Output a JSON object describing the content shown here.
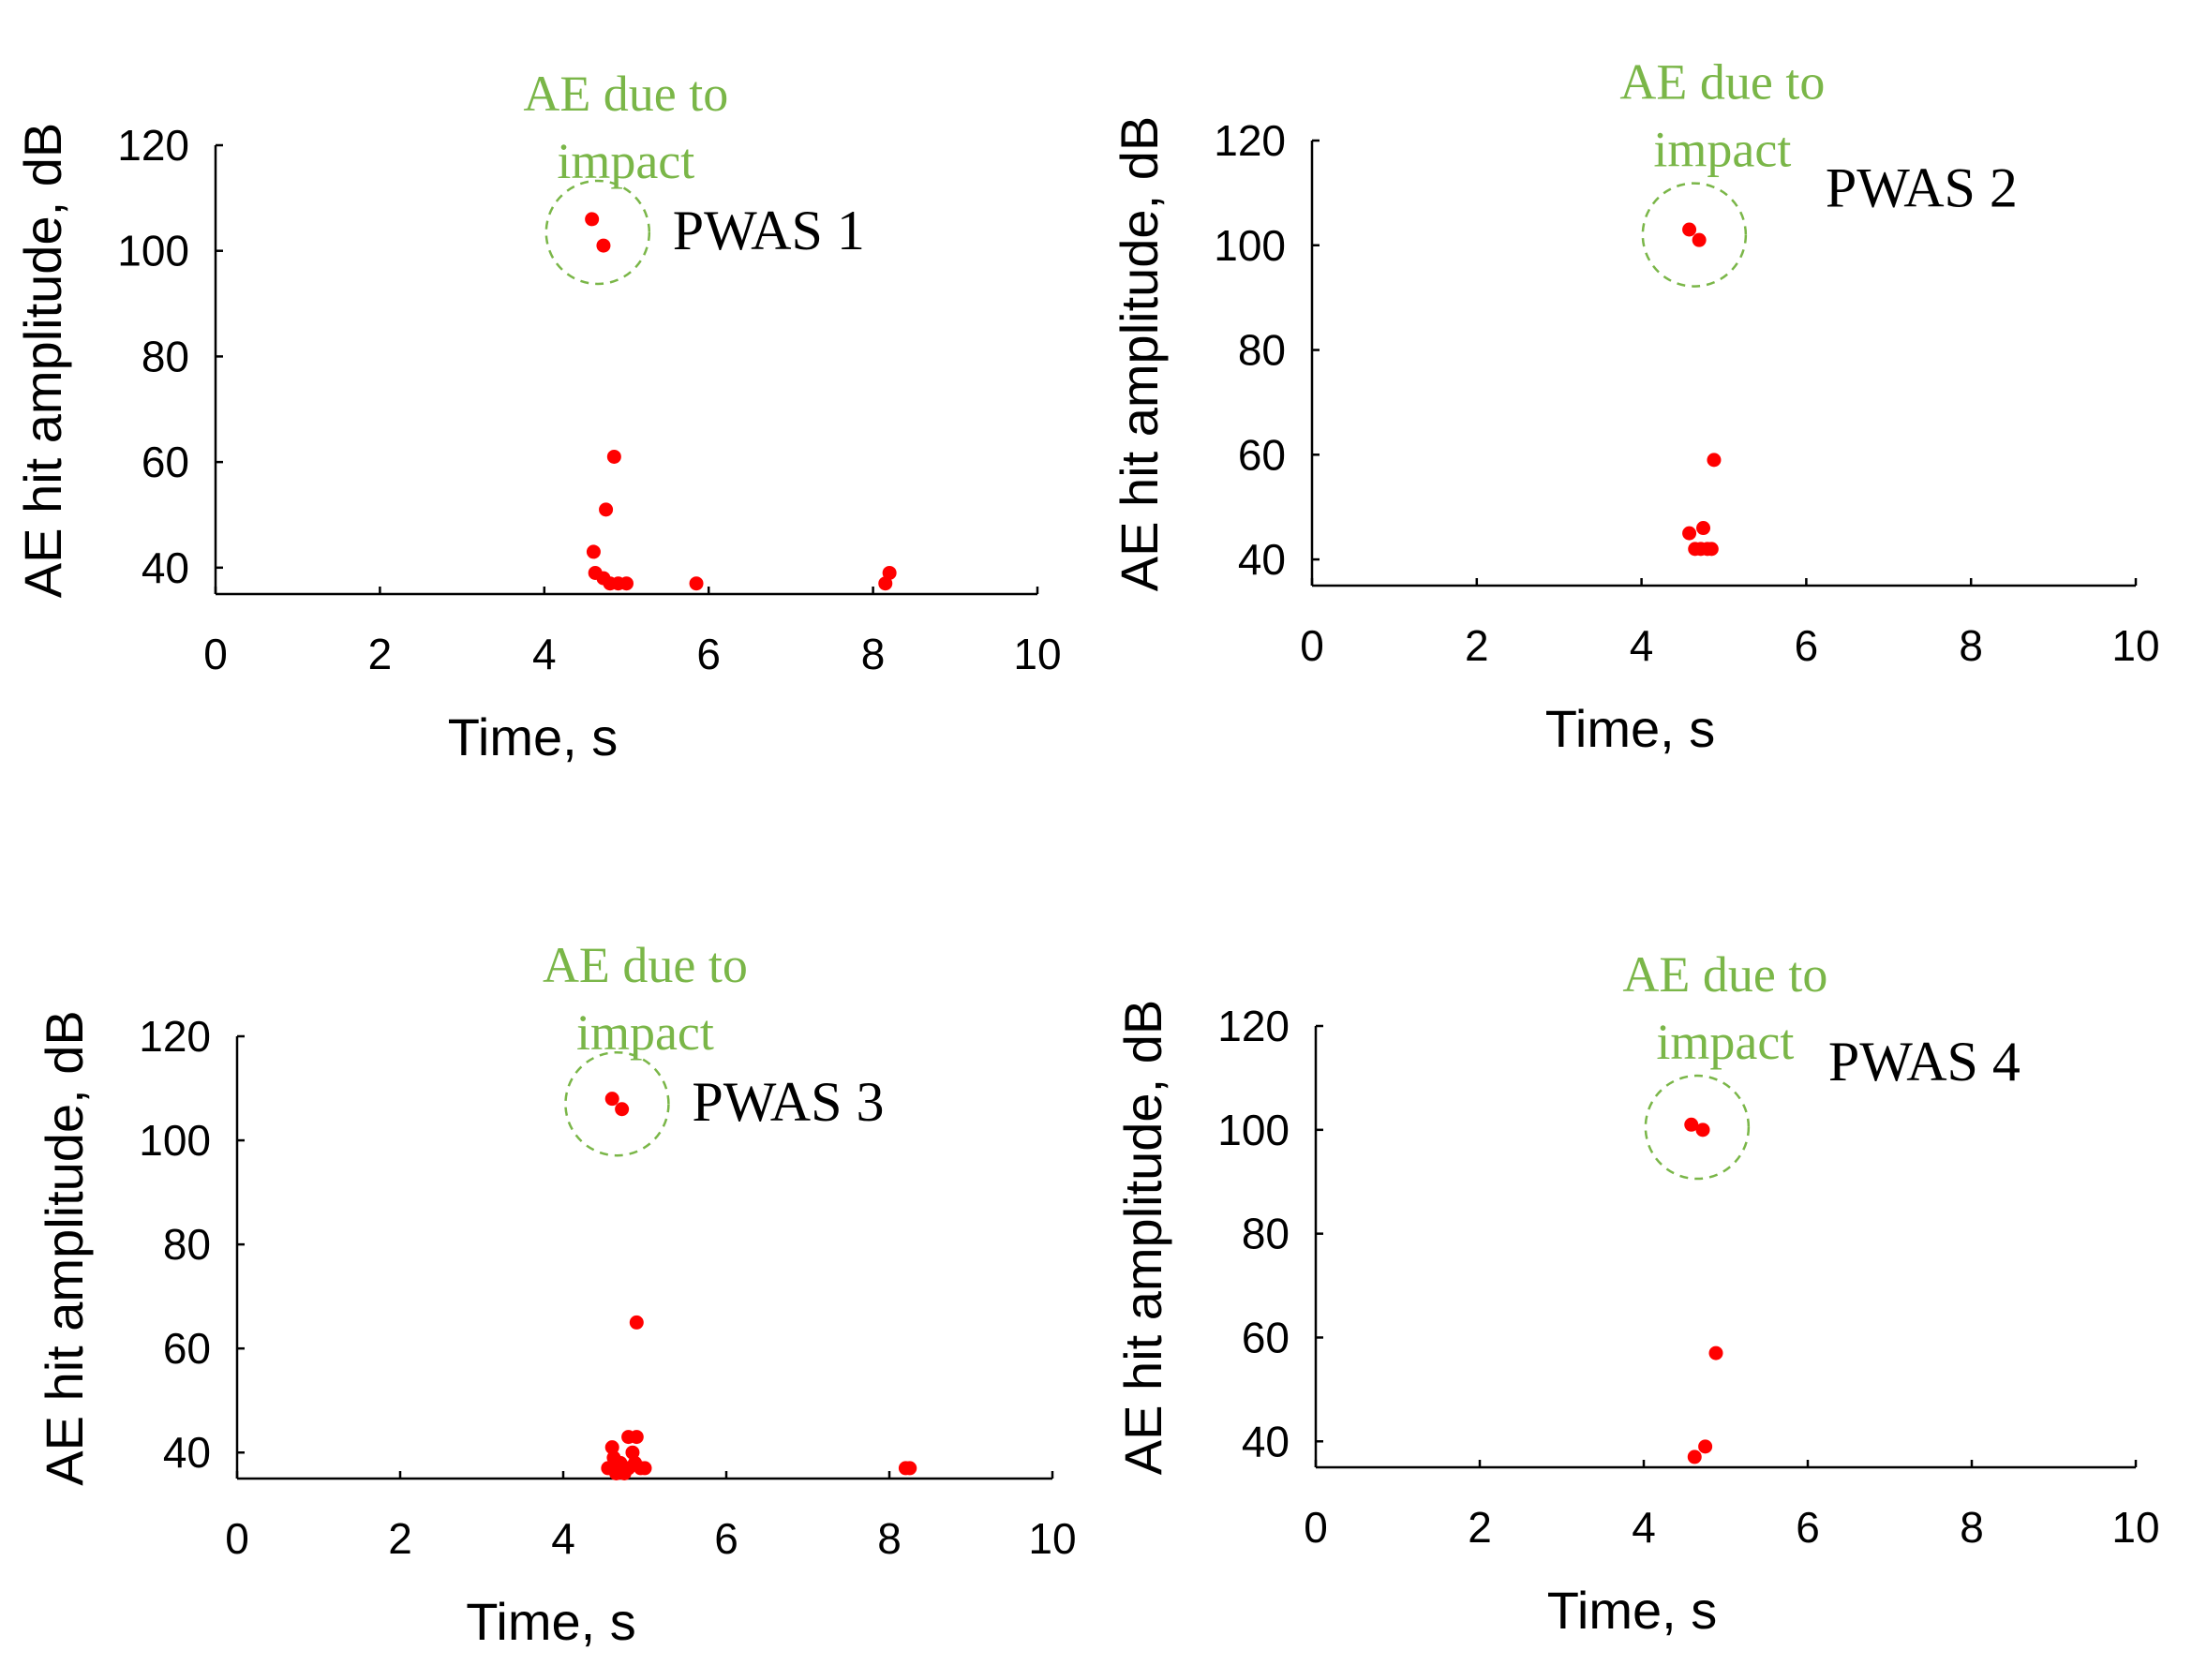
{
  "colors": {
    "point": "#ff0000",
    "annotation": "#7ab648",
    "axis": "#000000"
  },
  "chart_data": [
    {
      "type": "scatter",
      "label": "PWAS 1",
      "annotation": [
        "AE due to",
        "impact"
      ],
      "xlabel": "Time, s",
      "ylabel": "AE hit amplitude, dB",
      "xlim": [
        0,
        10
      ],
      "ylim": [
        35,
        120
      ],
      "xticks": [
        0,
        2,
        4,
        6,
        8,
        10
      ],
      "yticks": [
        40,
        60,
        80,
        100,
        120
      ],
      "points": [
        [
          4.58,
          106
        ],
        [
          4.72,
          101
        ],
        [
          4.85,
          61
        ],
        [
          4.75,
          51
        ],
        [
          4.6,
          43
        ],
        [
          4.62,
          39
        ],
        [
          4.72,
          38
        ],
        [
          4.8,
          37
        ],
        [
          4.9,
          37
        ],
        [
          5.0,
          37
        ],
        [
          5.85,
          37
        ],
        [
          8.15,
          37
        ],
        [
          8.2,
          39
        ]
      ]
    },
    {
      "type": "scatter",
      "label": "PWAS 2",
      "annotation": [
        "AE due to",
        "impact"
      ],
      "xlabel": "Time, s",
      "ylabel": "AE hit amplitude, dB",
      "xlim": [
        0,
        10
      ],
      "ylim": [
        35,
        120
      ],
      "xticks": [
        0,
        2,
        4,
        6,
        8,
        10
      ],
      "yticks": [
        40,
        60,
        80,
        100,
        120
      ],
      "points": [
        [
          4.58,
          103
        ],
        [
          4.7,
          101
        ],
        [
          4.88,
          59
        ],
        [
          4.58,
          45
        ],
        [
          4.75,
          46
        ],
        [
          4.65,
          42
        ],
        [
          4.72,
          42
        ],
        [
          4.8,
          42
        ],
        [
          4.85,
          42
        ]
      ]
    },
    {
      "type": "scatter",
      "label": "PWAS 3",
      "annotation": [
        "AE due to",
        "impact"
      ],
      "xlabel": "Time, s",
      "ylabel": "AE hit amplitude, dB",
      "xlim": [
        0,
        10
      ],
      "ylim": [
        35,
        120
      ],
      "xticks": [
        0,
        2,
        4,
        6,
        8,
        10
      ],
      "yticks": [
        40,
        60,
        80,
        100,
        120
      ],
      "points": [
        [
          4.6,
          108
        ],
        [
          4.72,
          106
        ],
        [
          4.9,
          65
        ],
        [
          4.6,
          41
        ],
        [
          4.8,
          43
        ],
        [
          4.9,
          43
        ],
        [
          4.62,
          39
        ],
        [
          4.7,
          38
        ],
        [
          4.8,
          37
        ],
        [
          4.88,
          38
        ],
        [
          4.55,
          37
        ],
        [
          4.65,
          36
        ],
        [
          4.75,
          36
        ],
        [
          4.95,
          37
        ],
        [
          5.0,
          37
        ],
        [
          4.85,
          40
        ],
        [
          8.2,
          37
        ],
        [
          8.25,
          37
        ]
      ]
    },
    {
      "type": "scatter",
      "label": "PWAS 4",
      "annotation": [
        "AE due to",
        "impact"
      ],
      "xlabel": "Time, s",
      "ylabel": "AE hit amplitude, dB",
      "xlim": [
        0,
        10
      ],
      "ylim": [
        35,
        120
      ],
      "xticks": [
        0,
        2,
        4,
        6,
        8,
        10
      ],
      "yticks": [
        40,
        60,
        80,
        100,
        120
      ],
      "points": [
        [
          4.58,
          101
        ],
        [
          4.72,
          100
        ],
        [
          4.88,
          57
        ],
        [
          4.75,
          39
        ],
        [
          4.62,
          37
        ]
      ]
    }
  ]
}
